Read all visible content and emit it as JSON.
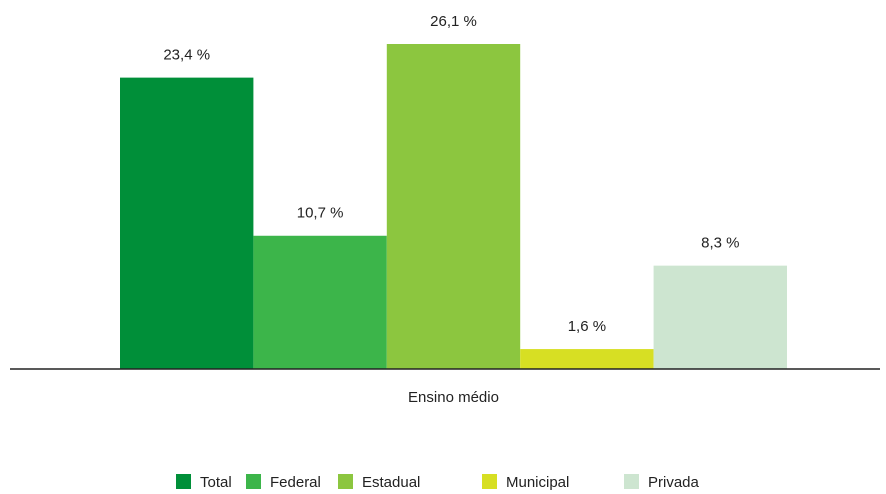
{
  "chart_data": {
    "type": "bar",
    "categories": [
      "Ensino médio"
    ],
    "series": [
      {
        "name": "Total",
        "color": "#008f39",
        "values": [
          23.4
        ],
        "value_labels": [
          "23,4 %"
        ]
      },
      {
        "name": "Federal",
        "color": "#3cb54a",
        "values": [
          10.7
        ],
        "value_labels": [
          "10,7 %"
        ]
      },
      {
        "name": "Estadual",
        "color": "#8cc63f",
        "values": [
          26.1
        ],
        "value_labels": [
          "26,1 %"
        ]
      },
      {
        "name": "Municipal",
        "color": "#d7df23",
        "values": [
          1.6
        ],
        "value_labels": [
          "1,6 %"
        ]
      },
      {
        "name": "Privada",
        "color": "#cde5d0",
        "values": [
          8.3
        ],
        "value_labels": [
          "8,3 %"
        ]
      }
    ],
    "legend": "bottom"
  }
}
